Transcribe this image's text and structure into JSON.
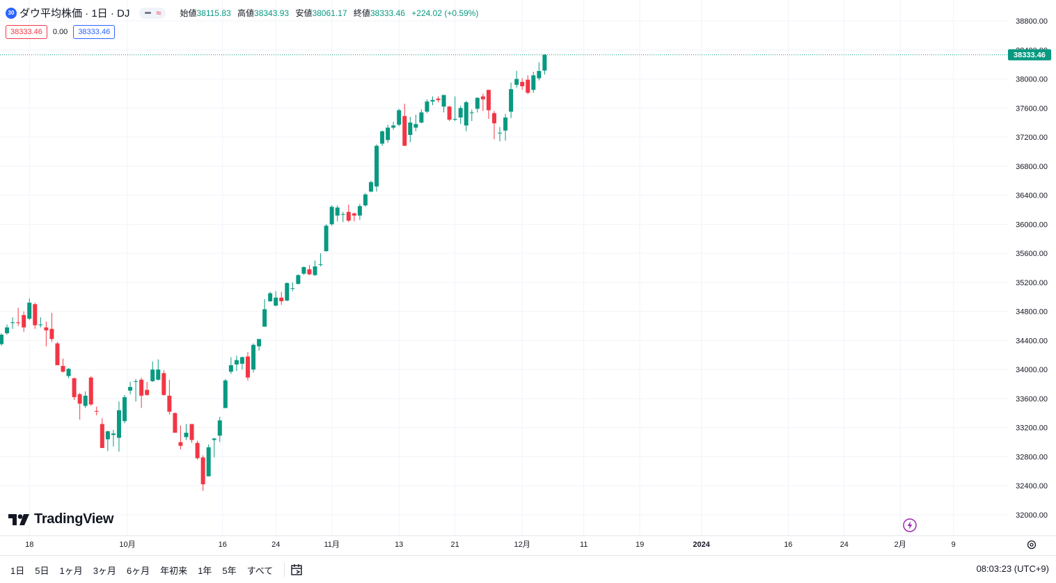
{
  "header": {
    "symbol_badge": "30",
    "title": "ダウ平均株価 · 1日 · DJ",
    "ohlc": {
      "open_label": "始値",
      "open": "38115.83",
      "high_label": "高値",
      "high": "38343.93",
      "low_label": "安値",
      "low": "38061.17",
      "close_label": "終値",
      "close": "38333.46",
      "change": "+224.02 (+0.59%)"
    }
  },
  "values_row": {
    "left": "38333.46",
    "middle": "0.00",
    "right": "38333.46"
  },
  "price_axis": {
    "ticks": [
      "38800.00",
      "38400.00",
      "38000.00",
      "37600.00",
      "37200.00",
      "36800.00",
      "36400.00",
      "36000.00",
      "35600.00",
      "35200.00",
      "34800.00",
      "34400.00",
      "34000.00",
      "33600.00",
      "33200.00",
      "32800.00",
      "32400.00",
      "32000.00"
    ],
    "last_price_label": "38333.46"
  },
  "time_axis": {
    "labels": [
      "18",
      "10月",
      "16",
      "24",
      "11月",
      "13",
      "21",
      "12月",
      "11",
      "19",
      "2024",
      "16",
      "24",
      "2月",
      "9"
    ]
  },
  "logo_text": "TradingView",
  "range_buttons": [
    "1日",
    "5日",
    "1ヶ月",
    "3ヶ月",
    "6ヶ月",
    "年初来",
    "1年",
    "5年",
    "すべて"
  ],
  "clock": "08:03:23 (UTC+9)",
  "colors": {
    "up": "#089981",
    "down": "#f23645",
    "grid": "#f0f3fa",
    "accent": "#2962ff",
    "bolt": "#9c27b0"
  },
  "icons": [
    "compare-icon",
    "goto-date-icon",
    "lightning-icon",
    "settings-icon"
  ],
  "chart_data": {
    "type": "candlestick",
    "title": "ダウ平均株価 · 1日 · DJ",
    "xlabel": "",
    "ylabel": "",
    "ylim": [
      31800,
      38950
    ],
    "grid": true,
    "candles": [
      {
        "o": 34350,
        "h": 34500,
        "l": 34330,
        "c": 34480
      },
      {
        "o": 34500,
        "h": 34620,
        "l": 34480,
        "c": 34580
      },
      {
        "o": 34640,
        "h": 34720,
        "l": 34560,
        "c": 34650
      },
      {
        "o": 34650,
        "h": 34850,
        "l": 34600,
        "c": 34640
      },
      {
        "o": 34750,
        "h": 34800,
        "l": 34520,
        "c": 34580
      },
      {
        "o": 34700,
        "h": 34980,
        "l": 34680,
        "c": 34920
      },
      {
        "o": 34900,
        "h": 34920,
        "l": 34560,
        "c": 34610
      },
      {
        "o": 34620,
        "h": 34720,
        "l": 34580,
        "c": 34620
      },
      {
        "o": 34580,
        "h": 34660,
        "l": 34320,
        "c": 34540
      },
      {
        "o": 34560,
        "h": 34780,
        "l": 34380,
        "c": 34420
      },
      {
        "o": 34360,
        "h": 34380,
        "l": 34060,
        "c": 34060
      },
      {
        "o": 34050,
        "h": 34150,
        "l": 33960,
        "c": 33970
      },
      {
        "o": 33910,
        "h": 34020,
        "l": 33880,
        "c": 34010
      },
      {
        "o": 33880,
        "h": 33890,
        "l": 33580,
        "c": 33620
      },
      {
        "o": 33660,
        "h": 33680,
        "l": 33310,
        "c": 33530
      },
      {
        "o": 33500,
        "h": 33700,
        "l": 33470,
        "c": 33640
      },
      {
        "o": 33890,
        "h": 33910,
        "l": 33500,
        "c": 33520
      },
      {
        "o": 33430,
        "h": 33490,
        "l": 33370,
        "c": 33420
      },
      {
        "o": 33250,
        "h": 33330,
        "l": 32930,
        "c": 32920
      },
      {
        "o": 33040,
        "h": 33160,
        "l": 32880,
        "c": 33150
      },
      {
        "o": 33100,
        "h": 33170,
        "l": 32940,
        "c": 33120
      },
      {
        "o": 33060,
        "h": 33560,
        "l": 32870,
        "c": 33440
      },
      {
        "o": 33290,
        "h": 33650,
        "l": 33260,
        "c": 33620
      },
      {
        "o": 33710,
        "h": 33830,
        "l": 33660,
        "c": 33760
      },
      {
        "o": 33840,
        "h": 33870,
        "l": 33560,
        "c": 33840
      },
      {
        "o": 33860,
        "h": 33890,
        "l": 33470,
        "c": 33640
      },
      {
        "o": 33720,
        "h": 33830,
        "l": 33640,
        "c": 33650
      },
      {
        "o": 33840,
        "h": 34110,
        "l": 33830,
        "c": 34000
      },
      {
        "o": 33860,
        "h": 34140,
        "l": 33850,
        "c": 34000
      },
      {
        "o": 33950,
        "h": 33990,
        "l": 33640,
        "c": 33650
      },
      {
        "o": 33640,
        "h": 33860,
        "l": 33380,
        "c": 33420
      },
      {
        "o": 33400,
        "h": 33410,
        "l": 33130,
        "c": 33130
      },
      {
        "o": 33000,
        "h": 33230,
        "l": 32900,
        "c": 32950
      },
      {
        "o": 33070,
        "h": 33250,
        "l": 33030,
        "c": 33130
      },
      {
        "o": 33250,
        "h": 33250,
        "l": 32990,
        "c": 33030
      },
      {
        "o": 32990,
        "h": 33020,
        "l": 32760,
        "c": 32780
      },
      {
        "o": 32790,
        "h": 32820,
        "l": 32330,
        "c": 32420
      },
      {
        "o": 32530,
        "h": 32970,
        "l": 32530,
        "c": 32930
      },
      {
        "o": 33030,
        "h": 33060,
        "l": 32790,
        "c": 33050
      },
      {
        "o": 33090,
        "h": 33350,
        "l": 33000,
        "c": 33300
      },
      {
        "o": 33470,
        "h": 33870,
        "l": 33470,
        "c": 33850
      },
      {
        "o": 33970,
        "h": 34170,
        "l": 33940,
        "c": 34060
      },
      {
        "o": 34070,
        "h": 34190,
        "l": 33980,
        "c": 34130
      },
      {
        "o": 34080,
        "h": 34180,
        "l": 34000,
        "c": 34170
      },
      {
        "o": 34180,
        "h": 34240,
        "l": 33850,
        "c": 33890
      },
      {
        "o": 34000,
        "h": 34360,
        "l": 33960,
        "c": 34340
      },
      {
        "o": 34320,
        "h": 34420,
        "l": 34260,
        "c": 34420
      },
      {
        "o": 34590,
        "h": 34970,
        "l": 34590,
        "c": 34830
      },
      {
        "o": 34940,
        "h": 35070,
        "l": 34930,
        "c": 35050
      },
      {
        "o": 34880,
        "h": 35080,
        "l": 34870,
        "c": 34990
      },
      {
        "o": 34990,
        "h": 35070,
        "l": 34890,
        "c": 34940
      },
      {
        "o": 34950,
        "h": 35200,
        "l": 34940,
        "c": 35190
      },
      {
        "o": 35120,
        "h": 35200,
        "l": 35080,
        "c": 35120
      },
      {
        "o": 35180,
        "h": 35310,
        "l": 35170,
        "c": 35300
      },
      {
        "o": 35320,
        "h": 35420,
        "l": 35300,
        "c": 35410
      },
      {
        "o": 35380,
        "h": 35440,
        "l": 35300,
        "c": 35310
      },
      {
        "o": 35300,
        "h": 35500,
        "l": 35290,
        "c": 35420
      },
      {
        "o": 35450,
        "h": 35600,
        "l": 35420,
        "c": 35450
      },
      {
        "o": 35630,
        "h": 36000,
        "l": 35620,
        "c": 35980
      },
      {
        "o": 36000,
        "h": 36260,
        "l": 35980,
        "c": 36240
      },
      {
        "o": 36120,
        "h": 36260,
        "l": 36040,
        "c": 36230
      },
      {
        "o": 36140,
        "h": 36170,
        "l": 36030,
        "c": 36140
      },
      {
        "o": 36170,
        "h": 36270,
        "l": 36030,
        "c": 36050
      },
      {
        "o": 36150,
        "h": 36160,
        "l": 36040,
        "c": 36120
      },
      {
        "o": 36120,
        "h": 36280,
        "l": 36060,
        "c": 36250
      },
      {
        "o": 36260,
        "h": 36430,
        "l": 36240,
        "c": 36410
      },
      {
        "o": 36450,
        "h": 36600,
        "l": 36440,
        "c": 36580
      },
      {
        "o": 36520,
        "h": 37100,
        "l": 36450,
        "c": 37080
      },
      {
        "o": 37110,
        "h": 37290,
        "l": 37080,
        "c": 37280
      },
      {
        "o": 37160,
        "h": 37370,
        "l": 37120,
        "c": 37330
      },
      {
        "o": 37330,
        "h": 37410,
        "l": 37300,
        "c": 37360
      },
      {
        "o": 37370,
        "h": 37590,
        "l": 37350,
        "c": 37570
      },
      {
        "o": 37490,
        "h": 37660,
        "l": 37080,
        "c": 37080
      },
      {
        "o": 37230,
        "h": 37480,
        "l": 37130,
        "c": 37400
      },
      {
        "o": 37330,
        "h": 37510,
        "l": 37280,
        "c": 37380
      },
      {
        "o": 37400,
        "h": 37580,
        "l": 37390,
        "c": 37540
      },
      {
        "o": 37550,
        "h": 37720,
        "l": 37530,
        "c": 37690
      },
      {
        "o": 37690,
        "h": 37760,
        "l": 37640,
        "c": 37710
      },
      {
        "o": 37730,
        "h": 37760,
        "l": 37680,
        "c": 37710
      },
      {
        "o": 37620,
        "h": 37760,
        "l": 37540,
        "c": 37780
      },
      {
        "o": 37620,
        "h": 37630,
        "l": 37420,
        "c": 37440
      },
      {
        "o": 37440,
        "h": 37760,
        "l": 37420,
        "c": 37450
      },
      {
        "o": 37470,
        "h": 37630,
        "l": 37380,
        "c": 37600
      },
      {
        "o": 37360,
        "h": 37700,
        "l": 37280,
        "c": 37680
      },
      {
        "o": 37530,
        "h": 37580,
        "l": 37420,
        "c": 37540
      },
      {
        "o": 37590,
        "h": 37750,
        "l": 37540,
        "c": 37740
      },
      {
        "o": 37760,
        "h": 37800,
        "l": 37560,
        "c": 37720
      },
      {
        "o": 37850,
        "h": 37850,
        "l": 37450,
        "c": 37570
      },
      {
        "o": 37530,
        "h": 37560,
        "l": 37170,
        "c": 37390
      },
      {
        "o": 37260,
        "h": 37340,
        "l": 37140,
        "c": 37260
      },
      {
        "o": 37290,
        "h": 37520,
        "l": 37150,
        "c": 37470
      },
      {
        "o": 37550,
        "h": 37950,
        "l": 37460,
        "c": 37860
      },
      {
        "o": 37920,
        "h": 38110,
        "l": 37880,
        "c": 38000
      },
      {
        "o": 37960,
        "h": 38010,
        "l": 37850,
        "c": 37900
      },
      {
        "o": 37990,
        "h": 38050,
        "l": 37790,
        "c": 37810
      },
      {
        "o": 37850,
        "h": 38100,
        "l": 37810,
        "c": 38050
      },
      {
        "o": 38010,
        "h": 38230,
        "l": 37980,
        "c": 38110
      },
      {
        "o": 38115.83,
        "h": 38343.93,
        "l": 38061.17,
        "c": 38333.46
      }
    ]
  }
}
